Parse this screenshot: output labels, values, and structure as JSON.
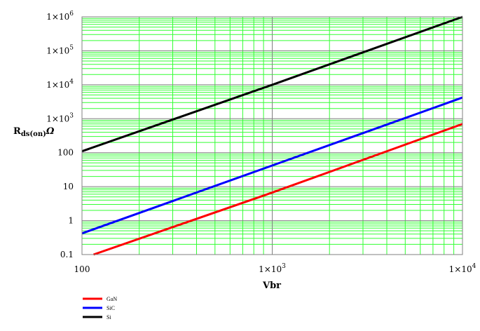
{
  "chart_data": {
    "type": "line",
    "x_scale": "log",
    "y_scale": "log",
    "xlim": [
      100,
      10000
    ],
    "ylim": [
      0.1,
      1000000
    ],
    "xlabel": "Vbr",
    "ylabel": {
      "main": "R",
      "subscript": "ds(on)",
      "unit": "Ω"
    },
    "grid": true,
    "x_ticks": [
      {
        "value": 100,
        "base": "100",
        "exp": ""
      },
      {
        "value": 1000,
        "base": "1×10",
        "exp": "3"
      },
      {
        "value": 10000,
        "base": "1×10",
        "exp": "4"
      }
    ],
    "y_ticks": [
      {
        "value": 0.1,
        "base": "0.1",
        "exp": ""
      },
      {
        "value": 1,
        "base": "1",
        "exp": ""
      },
      {
        "value": 10,
        "base": "10",
        "exp": ""
      },
      {
        "value": 100,
        "base": "100",
        "exp": ""
      },
      {
        "value": 1000,
        "base": "1×10",
        "exp": "3"
      },
      {
        "value": 10000,
        "base": "1×10",
        "exp": "4"
      },
      {
        "value": 100000,
        "base": "1×10",
        "exp": "5"
      },
      {
        "value": 1000000,
        "base": "1×10",
        "exp": "6"
      }
    ],
    "series": [
      {
        "name": "GaN",
        "color": "#ff0000",
        "x": [
          115,
          1000,
          10000
        ],
        "y": [
          0.1,
          6.7,
          700
        ]
      },
      {
        "name": "SiC",
        "color": "#0000ff",
        "x": [
          100,
          1000,
          10000
        ],
        "y": [
          0.42,
          42,
          4200
        ]
      },
      {
        "name": "Si",
        "color": "#000000",
        "x": [
          100,
          1000,
          10000
        ],
        "y": [
          110,
          10000,
          1000000
        ]
      }
    ],
    "legend_position": "bottom-left",
    "colors": {
      "major_grid": "#7f7f7f",
      "minor_grid": "#33ff33",
      "frame": "#808080"
    }
  }
}
